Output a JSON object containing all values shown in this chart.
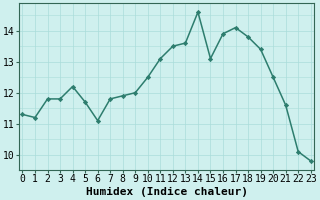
{
  "xlabel": "Humidex (Indice chaleur)",
  "x": [
    0,
    1,
    2,
    3,
    4,
    5,
    6,
    7,
    8,
    9,
    10,
    11,
    12,
    13,
    14,
    15,
    16,
    17,
    18,
    19,
    20,
    21,
    22,
    23
  ],
  "y": [
    11.3,
    11.2,
    11.8,
    11.8,
    12.2,
    11.7,
    11.1,
    11.8,
    11.9,
    12.0,
    12.5,
    13.1,
    13.5,
    13.6,
    14.6,
    13.1,
    13.9,
    14.1,
    13.8,
    13.4,
    12.5,
    11.6,
    10.1,
    9.8
  ],
  "line_color": "#2d7d6e",
  "marker": "D",
  "marker_size": 2.2,
  "bg_color": "#cff0ee",
  "grid_color_major": "#aaddda",
  "grid_color_minor": "#aaddda",
  "ylim": [
    9.5,
    14.9
  ],
  "yticks": [
    10,
    11,
    12,
    13,
    14
  ],
  "xticks": [
    0,
    1,
    2,
    3,
    4,
    5,
    6,
    7,
    8,
    9,
    10,
    11,
    12,
    13,
    14,
    15,
    16,
    17,
    18,
    19,
    20,
    21,
    22,
    23
  ],
  "xlabel_fontsize": 8,
  "tick_fontsize": 7,
  "linewidth": 1.1
}
